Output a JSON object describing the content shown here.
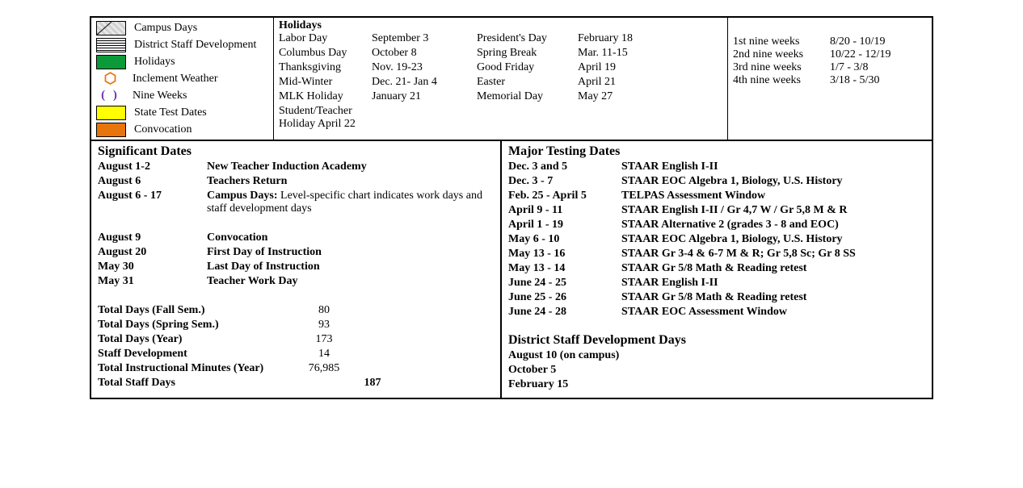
{
  "legend": [
    {
      "label": "Campus Days",
      "swatchClass": "swatch swatch-diag"
    },
    {
      "label": "District Staff Development",
      "swatchClass": "swatch swatch-lines"
    },
    {
      "label": "Holidays",
      "swatchClass": "swatch",
      "bg": "#0a9a3a"
    },
    {
      "label": "Inclement Weather",
      "swatchClass": "swatch-hex",
      "glyph": "⬡"
    },
    {
      "label": "Nine Weeks",
      "swatchClass": "swatch-paren",
      "glyph": "( )"
    },
    {
      "label": "State Test Dates",
      "swatchClass": "swatch",
      "bg": "#ffff00"
    },
    {
      "label": "Convocation",
      "swatchClass": "swatch",
      "bg": "#e8740c"
    }
  ],
  "holidaysTitle": "Holidays",
  "holidays": [
    {
      "name": "Labor Day",
      "date": "September 3",
      "name2": "President's Day",
      "date2": "February 18"
    },
    {
      "name": "Columbus Day",
      "date": "October 8",
      "name2": "Spring Break",
      "date2": "Mar. 11-15"
    },
    {
      "name": "Thanksgiving",
      "date": "Nov. 19-23",
      "name2": "Good Friday",
      "date2": "April 19"
    },
    {
      "name": "Mid-Winter",
      "date": "Dec. 21- Jan 4",
      "name2": "Easter",
      "date2": "April 21"
    },
    {
      "name": "MLK Holiday",
      "date": "January 21",
      "name2": "Memorial Day",
      "date2": "May 27"
    },
    {
      "name": "Student/Teacher Holiday April 22",
      "date": "",
      "name2": "",
      "date2": ""
    }
  ],
  "nineweeks": [
    {
      "label": "1st nine weeks",
      "range": "8/20 - 10/19"
    },
    {
      "label": "2nd nine weeks",
      "range": "10/22 - 12/19"
    },
    {
      "label": "3rd nine weeks",
      "range": "1/7 - 3/8"
    },
    {
      "label": "4th nine weeks",
      "range": "3/18 - 5/30"
    }
  ],
  "sigTitle": "Significant Dates",
  "sigDates1": [
    {
      "date": "August 1-2",
      "desc": "New Teacher Induction Academy",
      "bold": true
    },
    {
      "date": "August 6",
      "desc": "Teachers Return",
      "bold": true
    },
    {
      "date": "August 6 - 17",
      "desc": "Campus Days:",
      "extra": "  Level-specific chart indicates work days and staff development days"
    }
  ],
  "sigDates2": [
    {
      "date": "August 9",
      "desc": "Convocation",
      "bold": true
    },
    {
      "date": "August 20",
      "desc": "First Day of Instruction",
      "bold": true
    },
    {
      "date": "May 30",
      "desc": "Last Day of Instruction",
      "bold": true
    },
    {
      "date": "May 31",
      "desc": "Teacher Work Day",
      "bold": true
    }
  ],
  "totals": [
    {
      "label": "Total Days (Fall Sem.)",
      "value": "80"
    },
    {
      "label": "Total Days (Spring Sem.)",
      "value": "93"
    },
    {
      "label": "Total Days (Year)",
      "value": "173"
    },
    {
      "label": "Staff Development",
      "value": "14"
    },
    {
      "label": "Total Instructional Minutes (Year)",
      "value": "76,985"
    }
  ],
  "totalsFinal": {
    "label": "Total Staff Days",
    "value": "187"
  },
  "testTitle": "Major Testing Dates",
  "tests": [
    {
      "date": "Dec. 3 and 5",
      "desc": "STAAR English I-II"
    },
    {
      "date": "Dec. 3 - 7",
      "desc": "STAAR EOC Algebra 1, Biology, U.S. History"
    },
    {
      "date": "Feb. 25 - April 5",
      "desc": "TELPAS Assessment Window"
    },
    {
      "date": "April 9 - 11",
      "desc": "STAAR English I-II / Gr 4,7 W / Gr 5,8 M & R"
    },
    {
      "date": "April 1 - 19",
      "desc": "STAAR Alternative 2 (grades 3 - 8 and EOC)"
    },
    {
      "date": "May 6 - 10",
      "desc": "STAAR EOC Algebra 1, Biology, U.S. History"
    },
    {
      "date": "May 13 - 16",
      "desc": "STAAR Gr 3-4 & 6-7 M & R; Gr 5,8 Sc; Gr 8 SS"
    },
    {
      "date": "May 13 - 14",
      "desc": "STAAR Gr 5/8 Math & Reading retest"
    },
    {
      "date": "June 24 - 25",
      "desc": "STAAR English I-II"
    },
    {
      "date": "June 25 - 26",
      "desc": "STAAR Gr 5/8 Math & Reading retest"
    },
    {
      "date": "June 24 - 28",
      "desc": "STAAR EOC Assessment Window"
    }
  ],
  "devTitle": "District Staff Development Days",
  "devDays": [
    "August 10 (on campus)",
    "October 5",
    "February 15"
  ]
}
